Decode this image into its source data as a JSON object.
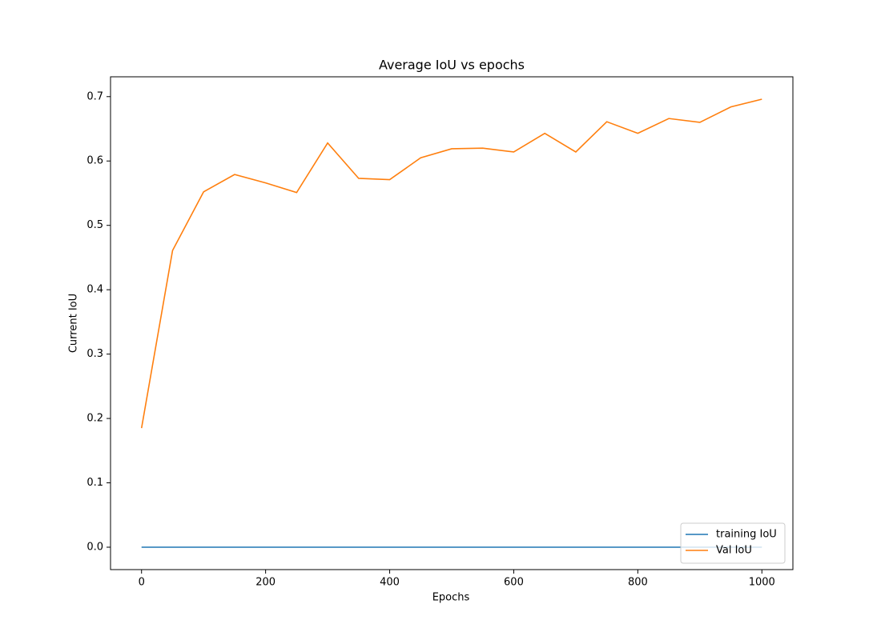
{
  "chart_data": {
    "type": "line",
    "title": "Average IoU vs epochs",
    "x_label": "Epochs",
    "y_label": "Current IoU",
    "x": [
      0,
      50,
      100,
      150,
      200,
      250,
      300,
      350,
      400,
      450,
      500,
      550,
      600,
      650,
      700,
      750,
      800,
      850,
      900,
      950,
      1000
    ],
    "series": [
      {
        "name": "training IoU",
        "color": "#1f77b4",
        "values": [
          0,
          0,
          0,
          0,
          0,
          0,
          0,
          0,
          0,
          0,
          0,
          0,
          0,
          0,
          0,
          0,
          0,
          0,
          0,
          0,
          0
        ]
      },
      {
        "name": "Val IoU",
        "color": "#ff7f0e",
        "values": [
          0.185,
          0.461,
          0.552,
          0.579,
          0.566,
          0.551,
          0.628,
          0.573,
          0.571,
          0.605,
          0.619,
          0.62,
          0.614,
          0.643,
          0.614,
          0.661,
          0.643,
          0.666,
          0.66,
          0.684,
          0.696
        ]
      }
    ],
    "xlim": [
      -50,
      1050
    ],
    "ylim": [
      -0.0348,
      0.7308
    ],
    "xticks": [
      0,
      200,
      400,
      600,
      800,
      1000
    ],
    "yticks": [
      {
        "value": 0,
        "label": "0.0"
      },
      0.1,
      0.2,
      0.3,
      0.4,
      0.5,
      0.6,
      0.7
    ],
    "legend": "lower right",
    "grid": false
  }
}
